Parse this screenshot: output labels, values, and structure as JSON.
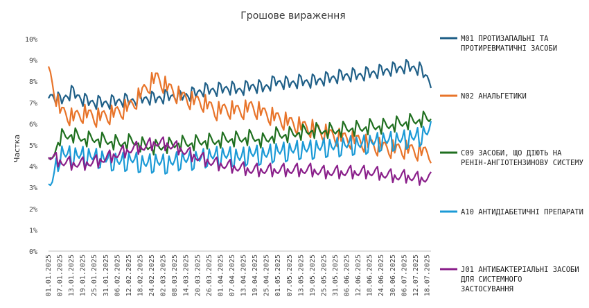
{
  "chart_data": {
    "type": "line",
    "title": "Грошове вираження",
    "ylabel": "Частка",
    "xlabel": "",
    "ylim": [
      0,
      10
    ],
    "y_ticks": [
      "0%",
      "1%",
      "2%",
      "3%",
      "4%",
      "5%",
      "6%",
      "7%",
      "8%",
      "9%",
      "10%"
    ],
    "x_tick_labels": [
      "01.01.2025",
      "07.01.2025",
      "13.01.2025",
      "19.01.2025",
      "25.01.2025",
      "31.01.2025",
      "06.02.2025",
      "12.02.2025",
      "18.02.2025",
      "24.02.2025",
      "02.03.2025",
      "08.03.2025",
      "14.03.2025",
      "20.03.2025",
      "26.03.2025",
      "01.04.2025",
      "07.04.2025",
      "13.04.2025",
      "19.04.2025",
      "25.04.2025",
      "01.05.2025",
      "07.05.2025",
      "13.05.2025",
      "19.05.2025",
      "25.05.2025",
      "31.05.2025",
      "06.06.2025",
      "12.06.2025",
      "18.06.2025",
      "24.06.2025",
      "30.06.2025",
      "06.07.2025",
      "12.07.2025",
      "18.07.2025"
    ],
    "x_start": "01.01.2025",
    "x_end": "20.07.2025",
    "grid": false,
    "legend_position": "right",
    "series": [
      {
        "name": "M01 ПРОТИЗАПАЛЬНІ ТА ПРОТИРЕВМАТИЧНІ ЗАСОБИ",
        "color": "#1f5f87",
        "values": [
          7.2,
          6.9,
          7.3,
          6.9,
          6.8,
          6.8,
          6.9,
          6.9,
          7.0,
          7.0,
          7.1,
          7.1,
          7.2,
          7.4,
          7.4,
          7.5,
          7.4,
          7.6,
          7.5,
          7.8,
          7.7,
          7.8,
          7.8,
          7.9,
          8.0,
          8.1,
          8.1,
          8.2,
          8.3,
          8.4,
          8.5,
          8.4,
          7.8
        ]
      },
      {
        "name": "N02 АНАЛЬГЕТИКИ",
        "color": "#e8742a",
        "values": [
          8.4,
          6.5,
          6.2,
          6.4,
          6.2,
          6.3,
          6.5,
          6.8,
          7.5,
          8.1,
          7.6,
          7.2,
          7.0,
          6.9,
          6.5,
          6.6,
          6.5,
          6.7,
          6.4,
          6.2,
          6.0,
          5.8,
          5.7,
          5.5,
          5.3,
          5.2,
          5.1,
          4.9,
          4.8,
          4.7,
          4.7,
          4.6,
          4.5
        ]
      },
      {
        "name": "C09 ЗАСОБИ, ЩО ДІЮТЬ НА РЕНІН-АНГІОТЕНЗИНОВУ СИСТЕМУ",
        "color": "#1f6f1f",
        "values": [
          4.1,
          5.5,
          5.6,
          5.4,
          5.4,
          5.3,
          5.2,
          5.3,
          5.1,
          5.0,
          5.1,
          5.2,
          5.2,
          5.3,
          5.3,
          5.4,
          5.4,
          5.5,
          5.3,
          5.6,
          5.6,
          5.7,
          5.8,
          5.8,
          5.8,
          5.9,
          5.9,
          6.0,
          6.0,
          6.1,
          6.2,
          6.3,
          6.4
        ]
      },
      {
        "name": "A10 АНТИДІАБЕТИЧНІ ПРЕПАРАТИ",
        "color": "#1b9ad6",
        "values": [
          3.1,
          4.9,
          4.8,
          4.8,
          4.7,
          4.6,
          4.5,
          4.6,
          4.4,
          4.5,
          4.4,
          4.6,
          4.6,
          4.7,
          4.8,
          4.8,
          4.7,
          4.9,
          4.8,
          5.0,
          5.0,
          5.1,
          5.1,
          5.2,
          5.2,
          5.3,
          5.3,
          5.4,
          5.5,
          5.5,
          5.6,
          5.7,
          6.0
        ]
      },
      {
        "name": "J01 АНТИБАКТЕРІАЛЬНІ ЗАСОБИ ДЛЯ СИСТЕМНОГО ЗАСТОСУВАННЯ",
        "color": "#8a1f8a",
        "values": [
          4.6,
          4.3,
          4.2,
          4.2,
          4.3,
          4.5,
          4.7,
          4.9,
          5.0,
          5.2,
          5.1,
          4.9,
          4.6,
          4.4,
          4.2,
          4.1,
          4.0,
          3.9,
          3.9,
          3.9,
          3.9,
          3.9,
          3.9,
          3.8,
          3.8,
          3.8,
          3.8,
          3.8,
          3.7,
          3.6,
          3.6,
          3.5,
          3.5
        ]
      }
    ]
  }
}
